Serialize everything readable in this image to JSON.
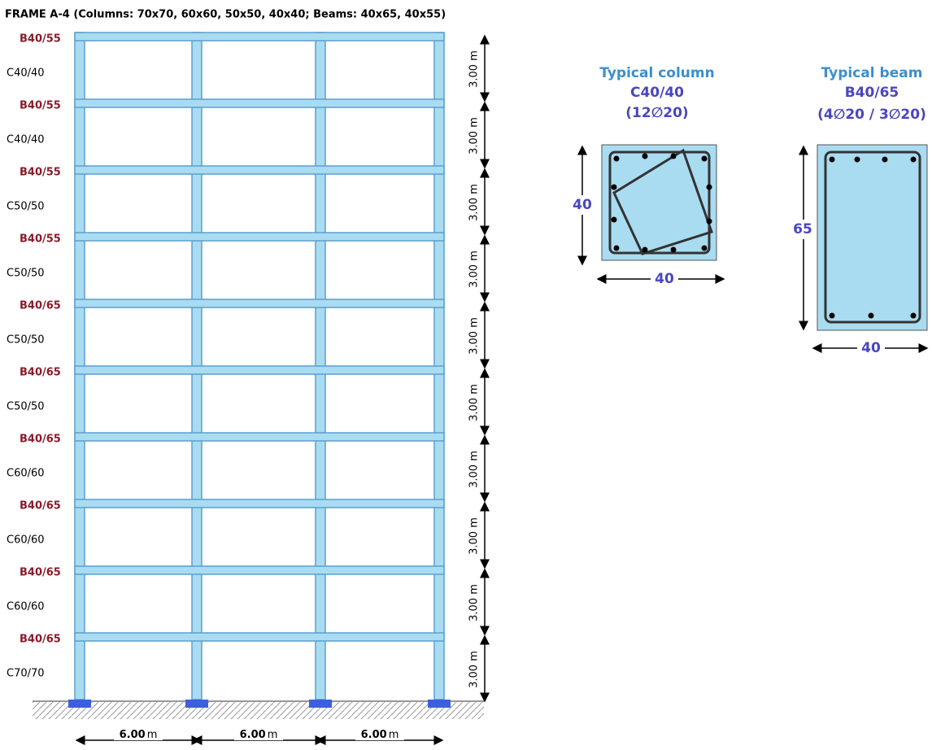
{
  "title": "FRAME A-4 (Columns: 70x70, 60x60, 50x50, 40x40; Beams: 40x65, 40x55)",
  "floors": [
    {
      "beam": "B40/55",
      "column": "C40/40",
      "height": "3.00 m"
    },
    {
      "beam": "B40/55",
      "column": "C40/40",
      "height": "3.00 m"
    },
    {
      "beam": "B40/55",
      "column": "C50/50",
      "height": "3.00 m"
    },
    {
      "beam": "B40/55",
      "column": "C50/50",
      "height": "3.00 m"
    },
    {
      "beam": "B40/65",
      "column": "C50/50",
      "height": "3.00 m"
    },
    {
      "beam": "B40/65",
      "column": "C50/50",
      "height": "3.00 m"
    },
    {
      "beam": "B40/65",
      "column": "C60/60",
      "height": "3.00 m"
    },
    {
      "beam": "B40/65",
      "column": "C60/60",
      "height": "3.00 m"
    },
    {
      "beam": "B40/65",
      "column": "C60/60",
      "height": "3.00 m"
    },
    {
      "beam": "B40/65",
      "column": "C70/70",
      "height": "3.00 m"
    }
  ],
  "bays": [
    {
      "value": "6.00",
      "unit": "m"
    },
    {
      "value": "6.00",
      "unit": "m"
    },
    {
      "value": "6.00",
      "unit": "m"
    }
  ],
  "typical_column": {
    "title": "Typical column",
    "label": "C40/40",
    "reinforcement": "(12∅20)",
    "height": "40",
    "width": "40"
  },
  "typical_beam": {
    "title": "Typical beam",
    "label": "B40/65",
    "reinforcement": "(4∅20 / 3∅20)",
    "height": "65",
    "width": "40"
  }
}
